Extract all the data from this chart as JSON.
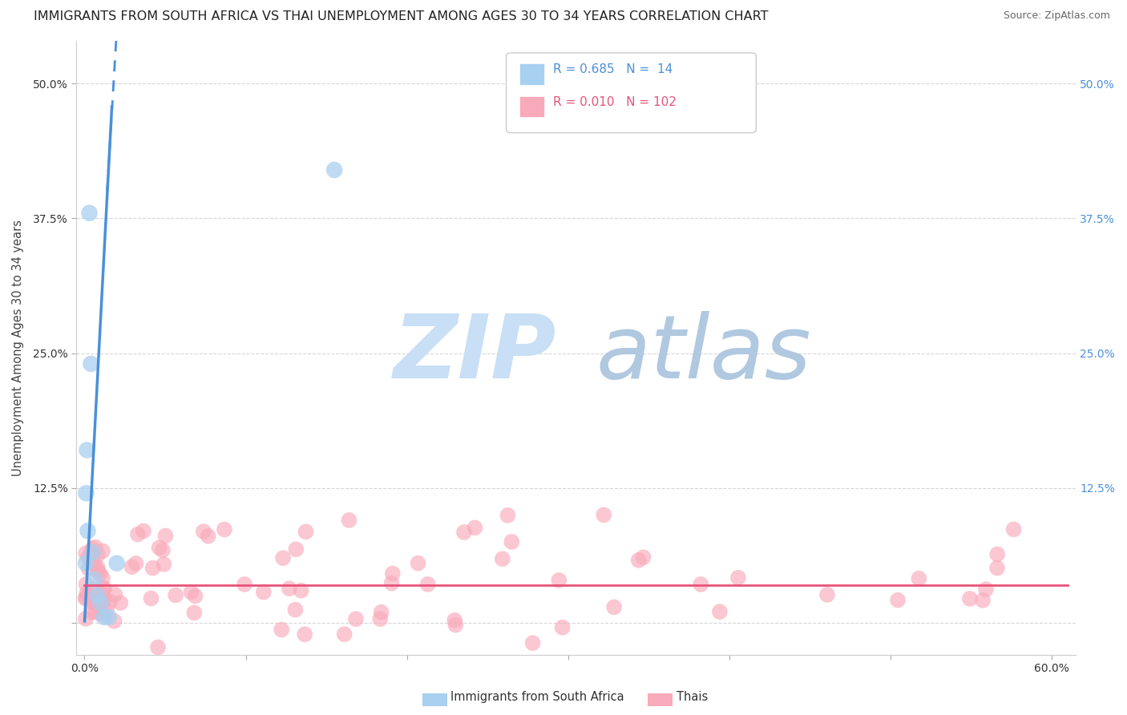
{
  "title": "IMMIGRANTS FROM SOUTH AFRICA VS THAI UNEMPLOYMENT AMONG AGES 30 TO 34 YEARS CORRELATION CHART",
  "source": "Source: ZipAtlas.com",
  "ylabel": "Unemployment Among Ages 30 to 34 years",
  "xlim": [
    -0.005,
    0.615
  ],
  "ylim": [
    -0.03,
    0.54
  ],
  "color_blue": "#A8D0F0",
  "color_pink": "#F9AABA",
  "color_blue_line": "#4A90D9",
  "color_pink_line": "#E8547A",
  "color_blue_text": "#4A90D9",
  "watermark_zip": "ZIP",
  "watermark_atlas": "atlas",
  "watermark_color_zip": "#C8DFF0",
  "watermark_color_atlas": "#B8CCE4",
  "background_color": "#FFFFFF",
  "grid_color": "#CCCCCC",
  "blue_x": [
    0.0008,
    0.001,
    0.0015,
    0.002,
    0.003,
    0.004,
    0.005,
    0.006,
    0.008,
    0.01,
    0.012,
    0.015,
    0.02,
    0.155
  ],
  "blue_y": [
    0.055,
    0.12,
    0.16,
    0.085,
    0.38,
    0.24,
    0.065,
    0.04,
    0.025,
    0.018,
    0.005,
    0.005,
    0.055,
    0.42
  ],
  "pink_trend_y": 0.035,
  "title_fontsize": 11.5,
  "axis_fontsize": 10.5,
  "tick_fontsize": 10,
  "right_tick_color": "#4A90D9"
}
